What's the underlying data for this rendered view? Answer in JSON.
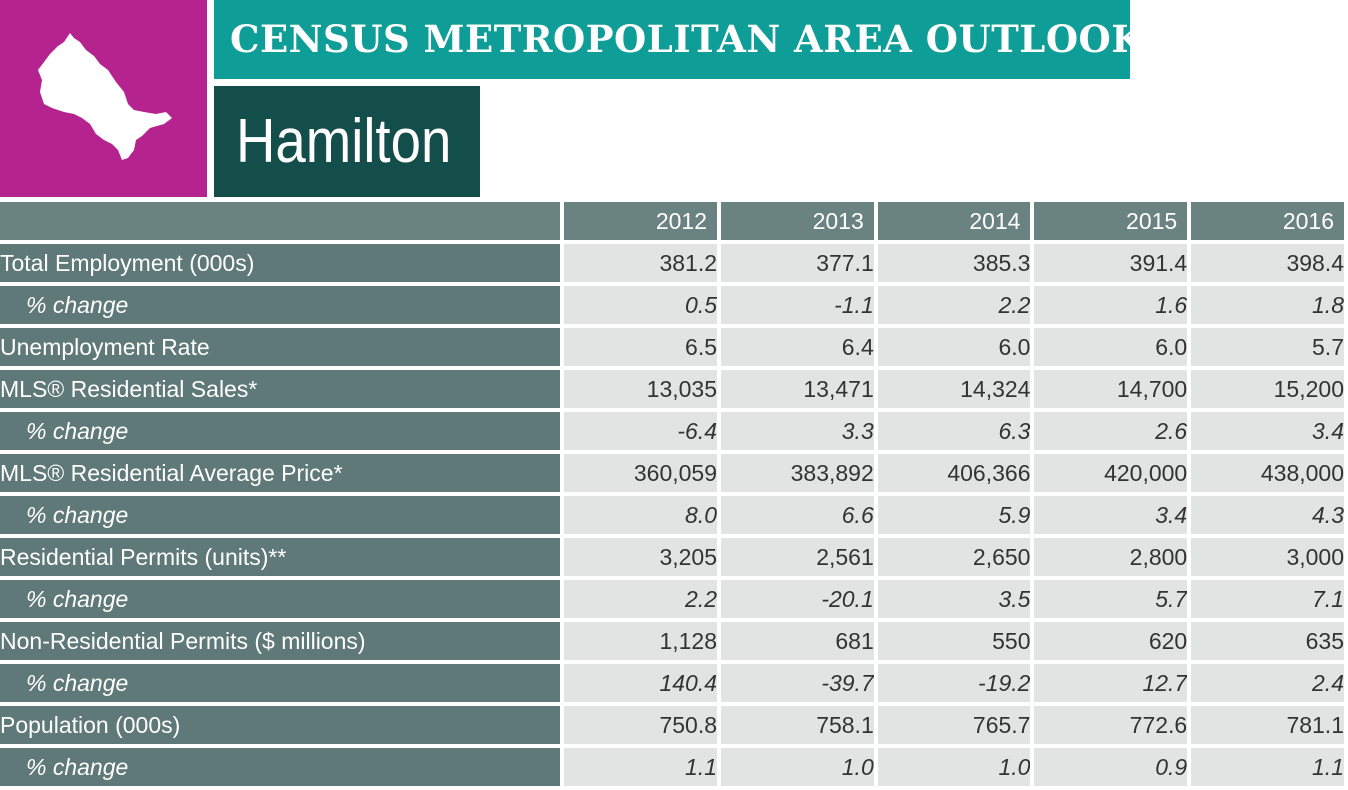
{
  "header": {
    "banner_title": "CENSUS METROPOLITAN AREA OUTLOOK",
    "city": "Hamilton",
    "logo_icon": "ontario-map-icon"
  },
  "colors": {
    "magenta": "#b4238e",
    "teal": "#0f9e97",
    "dark_teal": "#134e4b",
    "row_label_bg": "#5e7977",
    "cell_bg": "#e2e3e3"
  },
  "table": {
    "columns": [
      "2012",
      "2013",
      "2014",
      "2015",
      "2016"
    ],
    "rows": [
      {
        "label": "Total Employment (000s)",
        "values": [
          "381.2",
          "377.1",
          "385.3",
          "391.4",
          "398.4"
        ]
      },
      {
        "label": "% change",
        "values": [
          "0.5",
          "-1.1",
          "2.2",
          "1.6",
          "1.8"
        ]
      },
      {
        "label": "Unemployment Rate",
        "values": [
          "6.5",
          "6.4",
          "6.0",
          "6.0",
          "5.7"
        ]
      },
      {
        "label": "MLS® Residential Sales*",
        "values": [
          "13,035",
          "13,471",
          "14,324",
          "14,700",
          "15,200"
        ]
      },
      {
        "label": "% change",
        "values": [
          "-6.4",
          "3.3",
          "6.3",
          "2.6",
          "3.4"
        ]
      },
      {
        "label": "MLS® Residential Average Price*",
        "values": [
          "360,059",
          "383,892",
          "406,366",
          "420,000",
          "438,000"
        ]
      },
      {
        "label": "% change",
        "values": [
          "8.0",
          "6.6",
          "5.9",
          "3.4",
          "4.3"
        ]
      },
      {
        "label": "Residential Permits (units)**",
        "values": [
          "3,205",
          "2,561",
          "2,650",
          "2,800",
          "3,000"
        ]
      },
      {
        "label": "% change",
        "values": [
          "2.2",
          "-20.1",
          "3.5",
          "5.7",
          "7.1"
        ]
      },
      {
        "label": "Non-Residential Permits ($ millions)",
        "values": [
          "1,128",
          "681",
          "550",
          "620",
          "635"
        ]
      },
      {
        "label": "% change",
        "values": [
          "140.4",
          "-39.7",
          "-19.2",
          "12.7",
          "2.4"
        ]
      },
      {
        "label": "Population (000s)",
        "values": [
          "750.8",
          "758.1",
          "765.7",
          "772.6",
          "781.1"
        ]
      },
      {
        "label": "% change",
        "values": [
          "1.1",
          "1.0",
          "1.0",
          "0.9",
          "1.1"
        ]
      }
    ]
  }
}
